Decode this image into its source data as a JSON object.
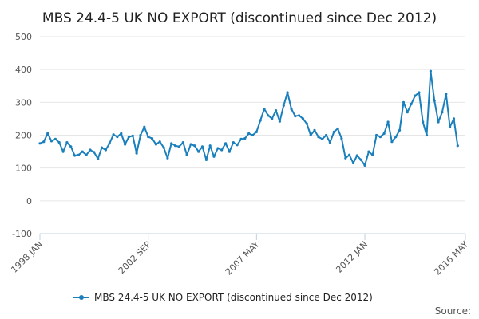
{
  "chart_data": {
    "type": "line",
    "title": "MBS 24.4-5 UK NO EXPORT (discontinued since Dec 2012)",
    "xlabel": "",
    "ylabel": "",
    "ylim": [
      -100,
      500
    ],
    "yticks": [
      -100,
      0,
      100,
      200,
      300,
      400,
      500
    ],
    "xlim": [
      "1998-01",
      "2016-05"
    ],
    "xticks": [
      "1998 JAN",
      "2002 SEP",
      "2007 MAY",
      "2012 JAN",
      "2016 MAY"
    ],
    "grid": "horizontal",
    "legend_position": "bottom",
    "series": [
      {
        "name": "MBS 24.4-5 UK NO EXPORT (discontinued since Dec 2012)",
        "color": "#1a7fbd",
        "points": [
          [
            "1998-01",
            175
          ],
          [
            "1998-03",
            180
          ],
          [
            "1998-05",
            205
          ],
          [
            "1998-07",
            182
          ],
          [
            "1998-09",
            188
          ],
          [
            "1998-11",
            178
          ],
          [
            "1999-01",
            150
          ],
          [
            "1999-03",
            178
          ],
          [
            "1999-05",
            165
          ],
          [
            "1999-07",
            138
          ],
          [
            "1999-09",
            140
          ],
          [
            "1999-11",
            150
          ],
          [
            "2000-01",
            140
          ],
          [
            "2000-03",
            155
          ],
          [
            "2000-05",
            148
          ],
          [
            "2000-07",
            128
          ],
          [
            "2000-09",
            162
          ],
          [
            "2000-11",
            155
          ],
          [
            "2001-01",
            175
          ],
          [
            "2001-03",
            202
          ],
          [
            "2001-05",
            195
          ],
          [
            "2001-07",
            205
          ],
          [
            "2001-09",
            172
          ],
          [
            "2001-11",
            195
          ],
          [
            "2002-01",
            198
          ],
          [
            "2002-03",
            145
          ],
          [
            "2002-05",
            200
          ],
          [
            "2002-07",
            225
          ],
          [
            "2002-09",
            195
          ],
          [
            "2002-11",
            190
          ],
          [
            "2003-01",
            172
          ],
          [
            "2003-03",
            180
          ],
          [
            "2003-05",
            162
          ],
          [
            "2003-07",
            130
          ],
          [
            "2003-09",
            175
          ],
          [
            "2003-11",
            168
          ],
          [
            "2004-01",
            165
          ],
          [
            "2004-03",
            178
          ],
          [
            "2004-05",
            140
          ],
          [
            "2004-07",
            172
          ],
          [
            "2004-09",
            168
          ],
          [
            "2004-11",
            150
          ],
          [
            "2005-01",
            165
          ],
          [
            "2005-03",
            125
          ],
          [
            "2005-05",
            168
          ],
          [
            "2005-07",
            135
          ],
          [
            "2005-09",
            160
          ],
          [
            "2005-11",
            155
          ],
          [
            "2006-01",
            175
          ],
          [
            "2006-03",
            150
          ],
          [
            "2006-05",
            178
          ],
          [
            "2006-07",
            170
          ],
          [
            "2006-09",
            188
          ],
          [
            "2006-11",
            190
          ],
          [
            "2007-01",
            205
          ],
          [
            "2007-03",
            200
          ],
          [
            "2007-05",
            210
          ],
          [
            "2007-07",
            245
          ],
          [
            "2007-09",
            280
          ],
          [
            "2007-11",
            260
          ],
          [
            "2008-01",
            250
          ],
          [
            "2008-03",
            275
          ],
          [
            "2008-05",
            242
          ],
          [
            "2008-07",
            290
          ],
          [
            "2008-09",
            330
          ],
          [
            "2008-11",
            280
          ],
          [
            "2009-01",
            258
          ],
          [
            "2009-03",
            260
          ],
          [
            "2009-05",
            250
          ],
          [
            "2009-07",
            235
          ],
          [
            "2009-09",
            200
          ],
          [
            "2009-11",
            215
          ],
          [
            "2010-01",
            195
          ],
          [
            "2010-03",
            188
          ],
          [
            "2010-05",
            200
          ],
          [
            "2010-07",
            178
          ],
          [
            "2010-09",
            210
          ],
          [
            "2010-11",
            220
          ],
          [
            "2011-01",
            190
          ],
          [
            "2011-03",
            130
          ],
          [
            "2011-05",
            140
          ],
          [
            "2011-07",
            115
          ],
          [
            "2011-09",
            138
          ],
          [
            "2011-11",
            125
          ],
          [
            "2012-01",
            108
          ],
          [
            "2012-03",
            150
          ],
          [
            "2012-05",
            140
          ],
          [
            "2012-07",
            200
          ],
          [
            "2012-09",
            195
          ],
          [
            "2012-11",
            205
          ],
          [
            "2013-01",
            240
          ],
          [
            "2013-03",
            180
          ],
          [
            "2013-05",
            195
          ],
          [
            "2013-07",
            215
          ],
          [
            "2013-09",
            300
          ],
          [
            "2013-11",
            270
          ],
          [
            "2014-01",
            295
          ],
          [
            "2014-03",
            320
          ],
          [
            "2014-05",
            330
          ],
          [
            "2014-07",
            240
          ],
          [
            "2014-09",
            200
          ],
          [
            "2014-11",
            395
          ],
          [
            "2015-01",
            305
          ],
          [
            "2015-03",
            240
          ],
          [
            "2015-05",
            270
          ],
          [
            "2015-07",
            325
          ],
          [
            "2015-09",
            225
          ],
          [
            "2015-11",
            250
          ],
          [
            "2016-01",
            168
          ]
        ]
      }
    ]
  },
  "credit": "Source:"
}
